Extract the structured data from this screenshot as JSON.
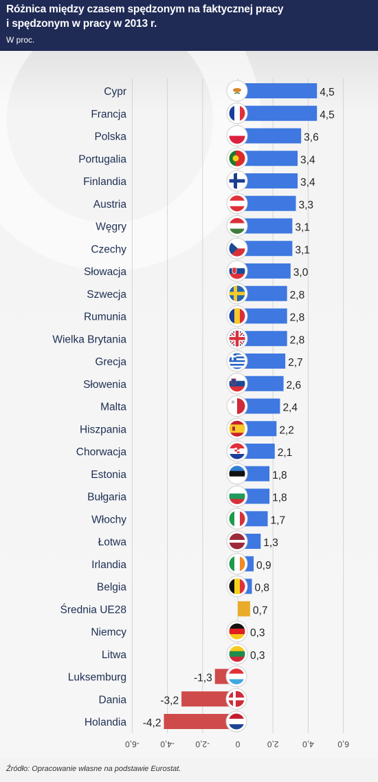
{
  "header": {
    "title_line1": "Różnica między czasem spędzonym na faktycznej pracy",
    "title_line2": "i spędzonym w pracy w 2013 r.",
    "subtitle": "W proc."
  },
  "footer": {
    "source": "Źródło: Opracowanie własne na podstawie Eurostat."
  },
  "colors": {
    "positive": "#3e78e0",
    "negative": "#cf4a4a",
    "average": "#e8ac28",
    "label": "#1d2e52",
    "header_bg": "#1f2a55"
  },
  "chart_data": {
    "type": "bar",
    "orientation": "horizontal",
    "title": "Różnica między czasem spędzonym na faktycznej pracy i spędzonym w pracy w 2013 r.",
    "subtitle": "W proc.",
    "xlim": [
      -6.0,
      6.0
    ],
    "x_ticks": [
      "-6,0",
      "-4,0",
      "-2,0",
      "0",
      "2,0",
      "4,0",
      "6,0"
    ],
    "x_tick_values": [
      -6,
      -4,
      -2,
      0,
      2,
      4,
      6
    ],
    "grid": true,
    "bars": [
      {
        "country": "Cypr",
        "value": 4.5,
        "label": "4,5",
        "flag": "cyprus-flag"
      },
      {
        "country": "Francja",
        "value": 4.5,
        "label": "4,5",
        "flag": "france-flag"
      },
      {
        "country": "Polska",
        "value": 3.6,
        "label": "3,6",
        "flag": "poland-flag"
      },
      {
        "country": "Portugalia",
        "value": 3.4,
        "label": "3,4",
        "flag": "portugal-flag"
      },
      {
        "country": "Finlandia",
        "value": 3.4,
        "label": "3,4",
        "flag": "finland-flag"
      },
      {
        "country": "Austria",
        "value": 3.3,
        "label": "3,3",
        "flag": "austria-flag"
      },
      {
        "country": "Węgry",
        "value": 3.1,
        "label": "3,1",
        "flag": "hungary-flag"
      },
      {
        "country": "Czechy",
        "value": 3.1,
        "label": "3,1",
        "flag": "czechia-flag"
      },
      {
        "country": "Słowacja",
        "value": 3.0,
        "label": "3,0",
        "flag": "slovakia-flag"
      },
      {
        "country": "Szwecja",
        "value": 2.8,
        "label": "2,8",
        "flag": "sweden-flag"
      },
      {
        "country": "Rumunia",
        "value": 2.8,
        "label": "2,8",
        "flag": "romania-flag"
      },
      {
        "country": "Wielka Brytania",
        "value": 2.8,
        "label": "2,8",
        "flag": "uk-flag"
      },
      {
        "country": "Grecja",
        "value": 2.7,
        "label": "2,7",
        "flag": "greece-flag"
      },
      {
        "country": "Słowenia",
        "value": 2.6,
        "label": "2,6",
        "flag": "slovenia-flag"
      },
      {
        "country": "Malta",
        "value": 2.4,
        "label": "2,4",
        "flag": "malta-flag"
      },
      {
        "country": "Hiszpania",
        "value": 2.2,
        "label": "2,2",
        "flag": "spain-flag"
      },
      {
        "country": "Chorwacja",
        "value": 2.1,
        "label": "2,1",
        "flag": "croatia-flag"
      },
      {
        "country": "Estonia",
        "value": 1.8,
        "label": "1,8",
        "flag": "estonia-flag"
      },
      {
        "country": "Bułgaria",
        "value": 1.8,
        "label": "1,8",
        "flag": "bulgaria-flag"
      },
      {
        "country": "Włochy",
        "value": 1.7,
        "label": "1,7",
        "flag": "italy-flag"
      },
      {
        "country": "Łotwa",
        "value": 1.3,
        "label": "1,3",
        "flag": "latvia-flag"
      },
      {
        "country": "Irlandia",
        "value": 0.9,
        "label": "0,9",
        "flag": "ireland-flag"
      },
      {
        "country": "Belgia",
        "value": 0.8,
        "label": "0,8",
        "flag": "belgium-flag"
      },
      {
        "country": "Średnia UE28",
        "value": 0.7,
        "label": "0,7",
        "flag": null,
        "average": true
      },
      {
        "country": "Niemcy",
        "value": 0.3,
        "label": "0,3",
        "flag": "germany-flag"
      },
      {
        "country": "Litwa",
        "value": 0.3,
        "label": "0,3",
        "flag": "lithuania-flag"
      },
      {
        "country": "Luksemburg",
        "value": -1.3,
        "label": "-1,3",
        "flag": "luxembourg-flag"
      },
      {
        "country": "Dania",
        "value": -3.2,
        "label": "-3,2",
        "flag": "denmark-flag"
      },
      {
        "country": "Holandia",
        "value": -4.2,
        "label": "-4,2",
        "flag": "netherlands-flag"
      }
    ]
  }
}
